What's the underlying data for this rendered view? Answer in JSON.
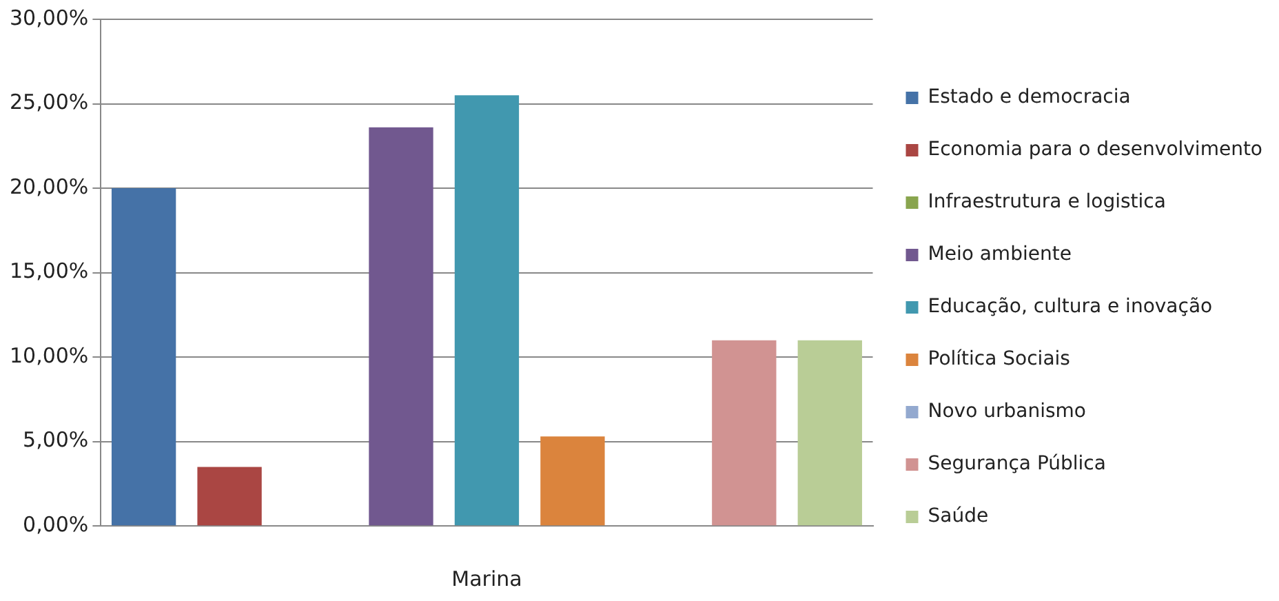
{
  "chart_data": {
    "type": "bar",
    "xlabel": "Marina",
    "categories": [
      null
    ],
    "series": [
      {
        "name": "Estado e democracia",
        "color": "#4572a7",
        "values": [
          20.0
        ]
      },
      {
        "name": "Economia para o desenvolvimento",
        "color": "#aa4643",
        "values": [
          3.5
        ]
      },
      {
        "name": "Infraestrutura e logistica",
        "color": "#89a54e",
        "values": [
          0
        ]
      },
      {
        "name": "Meio ambiente",
        "color": "#71588f",
        "values": [
          23.6
        ]
      },
      {
        "name": "Educação, cultura e inovação",
        "color": "#4198af",
        "values": [
          25.5
        ]
      },
      {
        "name": "Política Sociais",
        "color": "#db843d",
        "values": [
          5.3
        ]
      },
      {
        "name": "Novo urbanismo",
        "color": "#93a9cf",
        "values": [
          0
        ]
      },
      {
        "name": "Segurança Pública",
        "color": "#d19392",
        "values": [
          11.0
        ]
      },
      {
        "name": "Saúde",
        "color": "#b9cd96",
        "values": [
          11.0
        ]
      }
    ],
    "ylim": [
      0,
      30
    ],
    "yticks": [
      {
        "value": 0,
        "label": "0,00%"
      },
      {
        "value": 5,
        "label": "5,00%"
      },
      {
        "value": 10,
        "label": "10,00%"
      },
      {
        "value": 15,
        "label": "15,00%"
      },
      {
        "value": 20,
        "label": "20,00%"
      },
      {
        "value": 25,
        "label": "25,00%"
      },
      {
        "value": 30,
        "label": "30,00%"
      }
    ],
    "grid": "y",
    "legend": "right"
  }
}
